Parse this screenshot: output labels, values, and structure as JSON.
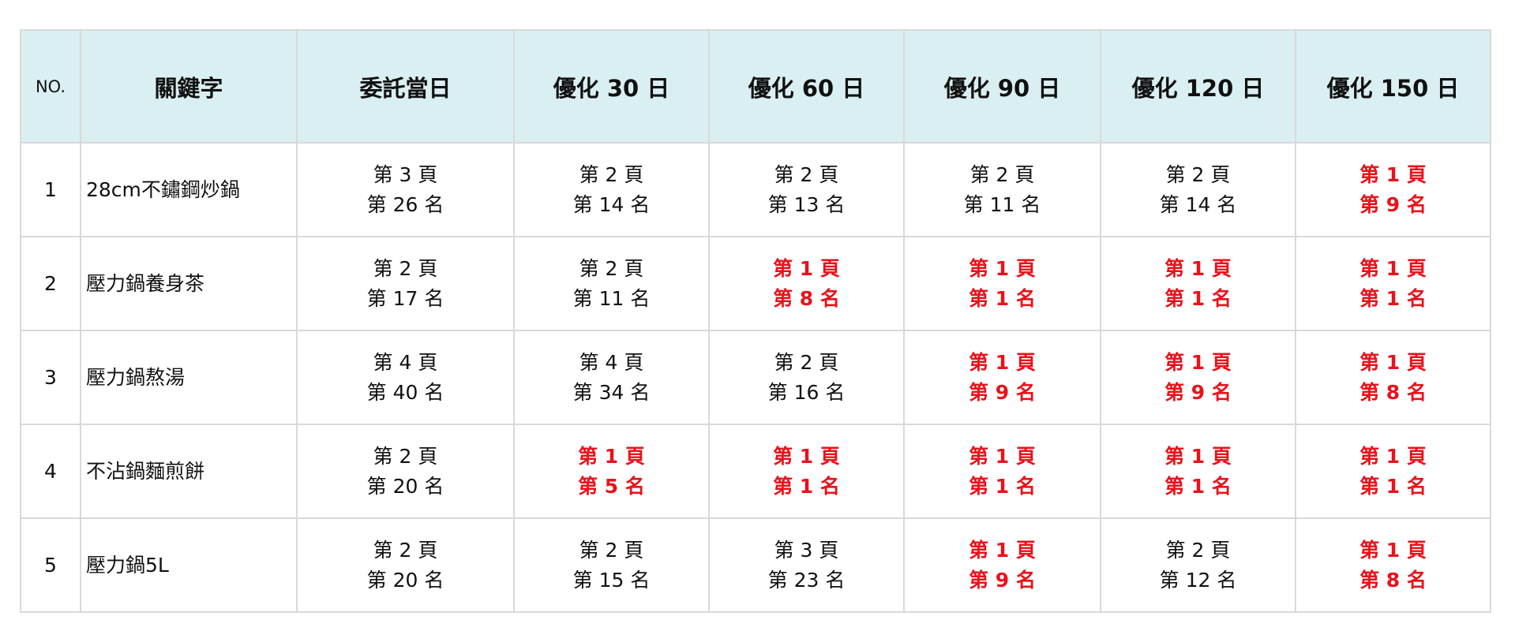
{
  "headers": [
    "NO.",
    "關鍵字",
    "委託當日",
    "優化 30 日",
    "優化 60 日",
    "優化 90 日",
    "優化 120 日",
    "優化 150 日"
  ],
  "highlight_color": "#e8121b",
  "rows": [
    {
      "no": "1",
      "keyword": "28cm不鏽鋼炒鍋",
      "cells": [
        {
          "page": "第 3 頁",
          "rank": "第 26 名",
          "top": false
        },
        {
          "page": "第 2 頁",
          "rank": "第 14 名",
          "top": false
        },
        {
          "page": "第 2 頁",
          "rank": "第 13 名",
          "top": false
        },
        {
          "page": "第 2 頁",
          "rank": "第 11 名",
          "top": false
        },
        {
          "page": "第 2 頁",
          "rank": "第 14 名",
          "top": false
        },
        {
          "page": "第 1 頁",
          "rank": "第 9 名",
          "top": true
        }
      ]
    },
    {
      "no": "2",
      "keyword": "壓力鍋養身茶",
      "cells": [
        {
          "page": "第 2 頁",
          "rank": "第 17 名",
          "top": false
        },
        {
          "page": "第 2 頁",
          "rank": "第 11 名",
          "top": false
        },
        {
          "page": "第 1 頁",
          "rank": "第 8 名",
          "top": true
        },
        {
          "page": "第 1 頁",
          "rank": "第 1 名",
          "top": true
        },
        {
          "page": "第 1 頁",
          "rank": "第 1 名",
          "top": true
        },
        {
          "page": "第 1 頁",
          "rank": "第 1 名",
          "top": true
        }
      ]
    },
    {
      "no": "3",
      "keyword": "壓力鍋熬湯",
      "cells": [
        {
          "page": "第 4 頁",
          "rank": "第 40 名",
          "top": false
        },
        {
          "page": "第 4 頁",
          "rank": "第 34 名",
          "top": false
        },
        {
          "page": "第 2 頁",
          "rank": "第 16 名",
          "top": false
        },
        {
          "page": "第 1 頁",
          "rank": "第 9 名",
          "top": true
        },
        {
          "page": "第 1 頁",
          "rank": "第 9 名",
          "top": true
        },
        {
          "page": "第 1 頁",
          "rank": "第 8 名",
          "top": true
        }
      ]
    },
    {
      "no": "4",
      "keyword": "不沾鍋麵煎餅",
      "cells": [
        {
          "page": "第 2 頁",
          "rank": "第 20 名",
          "top": false
        },
        {
          "page": "第 1 頁",
          "rank": "第 5 名",
          "top": true
        },
        {
          "page": "第 1 頁",
          "rank": "第 1 名",
          "top": true
        },
        {
          "page": "第 1 頁",
          "rank": "第 1 名",
          "top": true
        },
        {
          "page": "第 1 頁",
          "rank": "第 1 名",
          "top": true
        },
        {
          "page": "第 1 頁",
          "rank": "第 1 名",
          "top": true
        }
      ]
    },
    {
      "no": "5",
      "keyword": "壓力鍋5L",
      "cells": [
        {
          "page": "第 2 頁",
          "rank": "第 20 名",
          "top": false
        },
        {
          "page": "第 2 頁",
          "rank": "第 15 名",
          "top": false
        },
        {
          "page": "第 3 頁",
          "rank": "第 23 名",
          "top": false
        },
        {
          "page": "第 1 頁",
          "rank": "第 9 名",
          "top": true
        },
        {
          "page": "第 2 頁",
          "rank": "第 12 名",
          "top": false
        },
        {
          "page": "第 1 頁",
          "rank": "第 8 名",
          "top": true
        }
      ]
    }
  ]
}
